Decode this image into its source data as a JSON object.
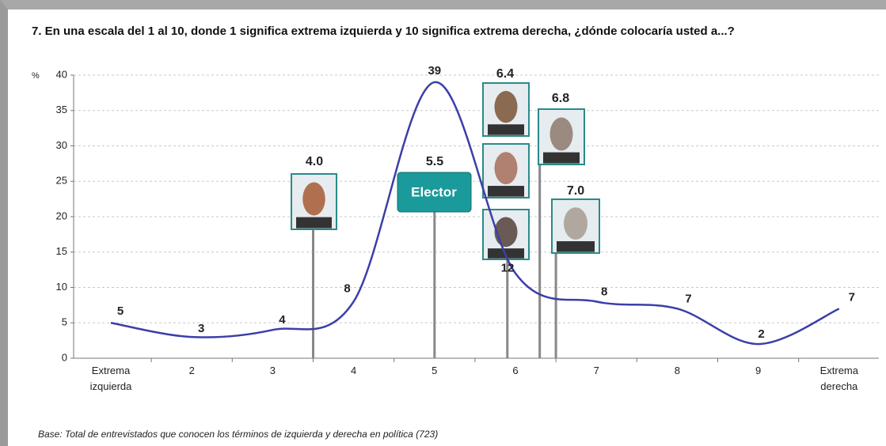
{
  "chart_data": {
    "type": "line",
    "title": "7. En una escala del 1 al 10, donde 1 significa extrema izquierda y 10 significa extrema derecha, ¿dónde colocaría usted a...?",
    "y_label": "%",
    "categories": [
      "Extrema izquierda",
      "2",
      "3",
      "4",
      "5",
      "6",
      "7",
      "8",
      "9",
      "Extrema derecha"
    ],
    "values": [
      5,
      3,
      4,
      8,
      39,
      12,
      8,
      7,
      2,
      7
    ],
    "color": "#3b3fa8",
    "ylim": [
      0,
      40
    ],
    "yticks": [
      0,
      5,
      10,
      15,
      20,
      25,
      30,
      35,
      40
    ],
    "grid": true,
    "markers": {
      "xlim": [
        1.5,
        10.5
      ],
      "x": [
        4.0,
        5.5,
        6.4,
        6.8,
        7.0
      ],
      "labels": [
        "4.0",
        "5.5",
        "6.4",
        "6.8",
        "7.0"
      ],
      "elector": "Elector"
    },
    "footnote": "Base: Total de entrevistados que conocen los términos de izquierda y derecha en política (723)"
  }
}
